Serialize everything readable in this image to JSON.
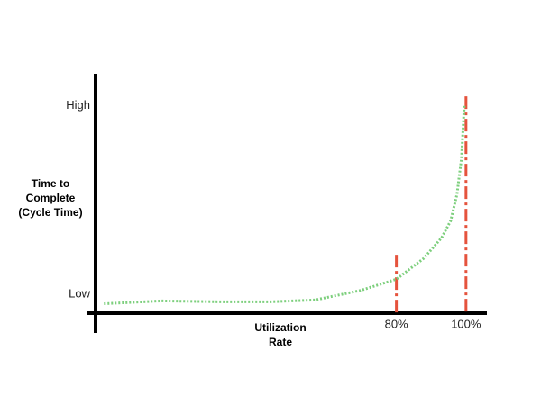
{
  "chart_data": {
    "type": "line",
    "ylabel": "Time to Complete (Cycle Time)",
    "xlabel": "Utilization Rate",
    "x": [
      -4,
      12.5,
      30.6,
      43.6,
      56.6,
      69.6,
      80,
      87.8,
      93,
      95.6,
      97.4,
      98.7,
      99.5
    ],
    "series": [
      {
        "color": "#7dcf7d",
        "values": [
          -0.05,
          -0.035,
          -0.04,
          -0.04,
          -0.03,
          0.02,
          0.08,
          0.19,
          0.3,
          0.39,
          0.53,
          0.72,
          1.0
        ]
      }
    ],
    "xlim": [
      -9,
      106
    ],
    "ylim": [
      -0.1,
      1.17
    ],
    "xticks": [
      {
        "value": 80,
        "label": "80%"
      },
      {
        "value": 100,
        "label": "100%"
      }
    ],
    "yticks": [
      {
        "value": 0,
        "label": "Low"
      },
      {
        "value": 1,
        "label": "High"
      }
    ],
    "vlines": [
      {
        "x": 80,
        "y": 0.21
      },
      {
        "x": 100,
        "y": 1.05
      }
    ],
    "vline_color": "#e5533d"
  }
}
